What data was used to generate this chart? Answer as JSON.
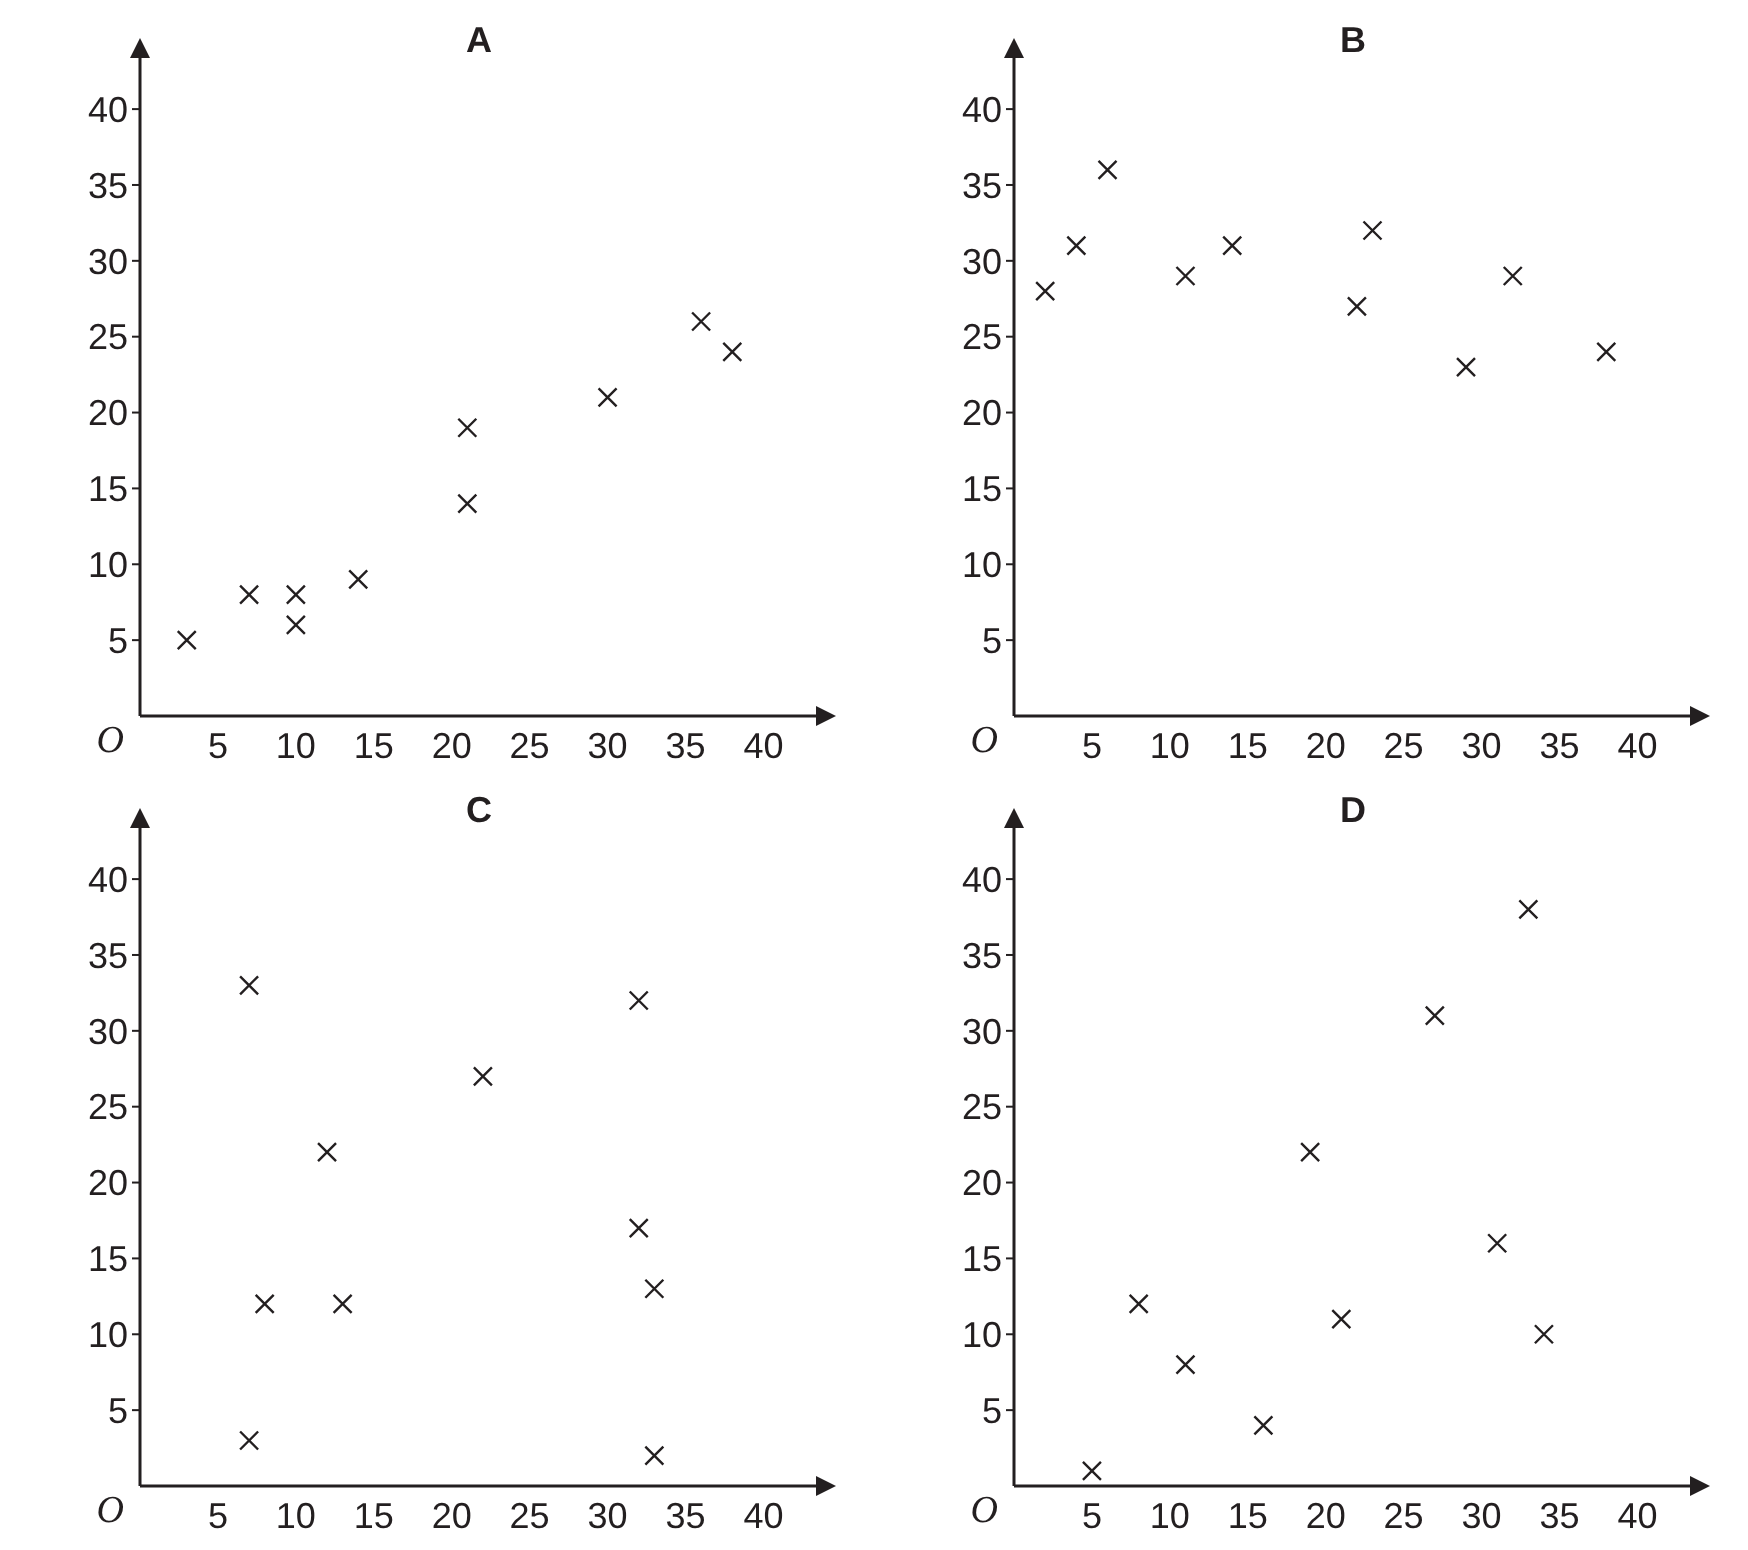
{
  "chart_data": [
    {
      "type": "scatter",
      "title": "A",
      "x": [
        3,
        7,
        10,
        10,
        14,
        21,
        21,
        30,
        36,
        38
      ],
      "values": [
        5,
        8,
        8,
        6,
        9,
        19,
        14,
        21,
        26,
        24
      ],
      "color": "#231f20",
      "marker": "cross",
      "grid": false,
      "xlim": [
        0,
        43.5
      ],
      "ylim": [
        0,
        43.5
      ],
      "xticks": [
        5,
        10,
        15,
        20,
        25,
        30,
        35,
        40
      ],
      "yticks": [
        5,
        10,
        15,
        20,
        25,
        30,
        35,
        40
      ],
      "annotations": [
        "O"
      ]
    },
    {
      "type": "scatter",
      "title": "B",
      "x": [
        2,
        4,
        6,
        11,
        14,
        22,
        23,
        29,
        32,
        38
      ],
      "values": [
        28,
        31,
        36,
        29,
        31,
        27,
        32,
        23,
        29,
        24
      ],
      "color": "#231f20",
      "marker": "cross",
      "grid": false,
      "xlim": [
        0,
        43.5
      ],
      "ylim": [
        0,
        43.5
      ],
      "xticks": [
        5,
        10,
        15,
        20,
        25,
        30,
        35,
        40
      ],
      "yticks": [
        5,
        10,
        15,
        20,
        25,
        30,
        35,
        40
      ],
      "annotations": [
        "O"
      ]
    },
    {
      "type": "scatter",
      "title": "C",
      "x": [
        7,
        7,
        8,
        12,
        13,
        22,
        32,
        32,
        33,
        33
      ],
      "values": [
        33,
        3,
        12,
        22,
        12,
        27,
        32,
        17,
        13,
        2
      ],
      "color": "#231f20",
      "marker": "cross",
      "grid": false,
      "xlim": [
        0,
        43.5
      ],
      "ylim": [
        0,
        43.5
      ],
      "xticks": [
        5,
        10,
        15,
        20,
        25,
        30,
        35,
        40
      ],
      "yticks": [
        5,
        10,
        15,
        20,
        25,
        30,
        35,
        40
      ],
      "annotations": [
        "O"
      ]
    },
    {
      "type": "scatter",
      "title": "D",
      "x": [
        5,
        8,
        11,
        16,
        19,
        21,
        27,
        31,
        33,
        34
      ],
      "values": [
        1,
        12,
        8,
        4,
        22,
        11,
        31,
        16,
        38,
        10
      ],
      "color": "#231f20",
      "marker": "cross",
      "grid": false,
      "xlim": [
        0,
        43.5
      ],
      "ylim": [
        0,
        43.5
      ],
      "xticks": [
        5,
        10,
        15,
        20,
        25,
        30,
        35,
        40
      ],
      "yticks": [
        5,
        10,
        15,
        20,
        25,
        30,
        35,
        40
      ],
      "annotations": [
        "O"
      ]
    }
  ]
}
